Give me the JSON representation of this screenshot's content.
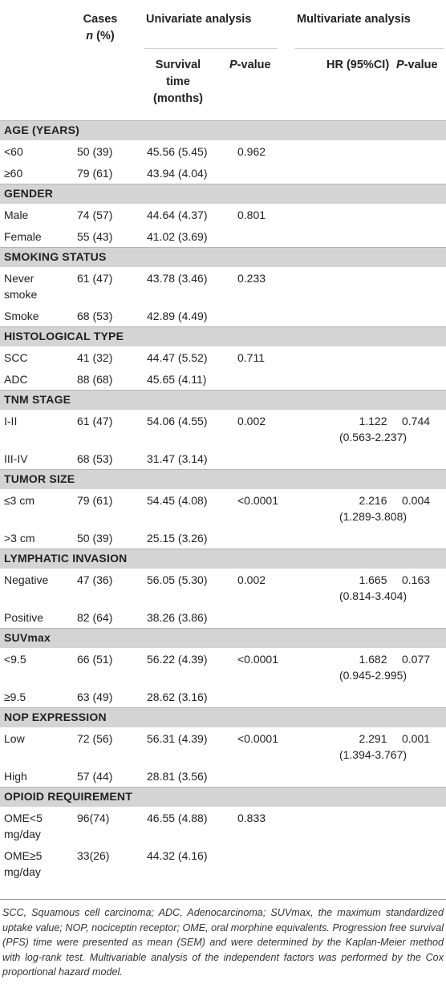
{
  "header": {
    "cases": "Cases",
    "cases_n": "n",
    "cases_pct": "(%)",
    "univariate": "Univariate analysis",
    "multivariate": "Multivariate analysis",
    "survival_line1": "Survival",
    "survival_line2": "time",
    "survival_line3": "(months)",
    "p_letter": "P",
    "p_suffix": "-value",
    "hr": "HR (95%CI)"
  },
  "sections": [
    {
      "title": "AGE (YEARS)",
      "rows": [
        {
          "factor": [
            "<60"
          ],
          "cases": "50 (39)",
          "survival": "45.56 (5.45)",
          "p_uni": "0.962",
          "hr": [],
          "p_multi": ""
        },
        {
          "factor": [
            "≥60"
          ],
          "cases": "79 (61)",
          "survival": "43.94 (4.04)",
          "p_uni": "",
          "hr": [],
          "p_multi": ""
        }
      ]
    },
    {
      "title": "GENDER",
      "rows": [
        {
          "factor": [
            "Male"
          ],
          "cases": "74 (57)",
          "survival": "44.64 (4.37)",
          "p_uni": "0.801",
          "hr": [],
          "p_multi": ""
        },
        {
          "factor": [
            "Female"
          ],
          "cases": "55 (43)",
          "survival": "41.02 (3.69)",
          "p_uni": "",
          "hr": [],
          "p_multi": ""
        }
      ]
    },
    {
      "title": "SMOKING STATUS",
      "rows": [
        {
          "factor": [
            "Never",
            "smoke"
          ],
          "cases": "61 (47)",
          "survival": "43.78 (3.46)",
          "p_uni": "0.233",
          "hr": [],
          "p_multi": ""
        },
        {
          "factor": [
            "Smoke"
          ],
          "cases": "68 (53)",
          "survival": "42.89 (4.49)",
          "p_uni": "",
          "hr": [],
          "p_multi": ""
        }
      ]
    },
    {
      "title": "HISTOLOGICAL TYPE",
      "rows": [
        {
          "factor": [
            "SCC"
          ],
          "cases": "41 (32)",
          "survival": "44.47 (5.52)",
          "p_uni": "0.711",
          "hr": [],
          "p_multi": ""
        },
        {
          "factor": [
            "ADC"
          ],
          "cases": "88 (68)",
          "survival": "45.65 (4.11)",
          "p_uni": "",
          "hr": [],
          "p_multi": ""
        }
      ]
    },
    {
      "title": "TNM STAGE",
      "rows": [
        {
          "factor": [
            "I-II"
          ],
          "cases": "61 (47)",
          "survival": "54.06 (4.55)",
          "p_uni": "0.002",
          "hr": [
            "1.122",
            "(0.563-2.237)"
          ],
          "p_multi": "0.744"
        },
        {
          "factor": [
            "III-IV"
          ],
          "cases": "68 (53)",
          "survival": "31.47 (3.14)",
          "p_uni": "",
          "hr": [],
          "p_multi": ""
        }
      ]
    },
    {
      "title": "TUMOR SIZE",
      "rows": [
        {
          "factor": [
            "≤3 cm"
          ],
          "cases": "79 (61)",
          "survival": "54.45 (4.08)",
          "p_uni": "<0.0001",
          "hr": [
            "2.216",
            "(1.289-3.808)"
          ],
          "p_multi": "0.004"
        },
        {
          "factor": [
            ">3 cm"
          ],
          "cases": "50 (39)",
          "survival": "25.15 (3.26)",
          "p_uni": "",
          "hr": [],
          "p_multi": ""
        }
      ]
    },
    {
      "title": "LYMPHATIC INVASION",
      "rows": [
        {
          "factor": [
            "Negative"
          ],
          "cases": "47 (36)",
          "survival": "56.05 (5.30)",
          "p_uni": "0.002",
          "hr": [
            "1.665",
            "(0.814-3.404)"
          ],
          "p_multi": "0.163"
        },
        {
          "factor": [
            "Positive"
          ],
          "cases": "82 (64)",
          "survival": "38.26 (3.86)",
          "p_uni": "",
          "hr": [],
          "p_multi": ""
        }
      ]
    },
    {
      "title": "SUVmax",
      "rows": [
        {
          "factor": [
            "<9.5"
          ],
          "cases": "66 (51)",
          "survival": "56.22 (4.39)",
          "p_uni": "<0.0001",
          "hr": [
            "1.682",
            "(0.945-2.995)"
          ],
          "p_multi": "0.077"
        },
        {
          "factor": [
            "≥9.5"
          ],
          "cases": "63 (49)",
          "survival": "28.62 (3.16)",
          "p_uni": "",
          "hr": [],
          "p_multi": ""
        }
      ]
    },
    {
      "title": "NOP EXPRESSION",
      "rows": [
        {
          "factor": [
            "Low"
          ],
          "cases": "72 (56)",
          "survival": "56.31 (4.39)",
          "p_uni": "<0.0001",
          "hr": [
            "2.291",
            "(1.394-3.767)"
          ],
          "p_multi": "0.001"
        },
        {
          "factor": [
            "High"
          ],
          "cases": "57 (44)",
          "survival": "28.81 (3.56)",
          "p_uni": "",
          "hr": [],
          "p_multi": ""
        }
      ]
    },
    {
      "title": "OPIOID REQUIREMENT",
      "rows": [
        {
          "factor": [
            "OME<5",
            "mg/day"
          ],
          "cases": "96(74)",
          "survival": "46.55 (4.88)",
          "p_uni": "0.833",
          "hr": [],
          "p_multi": ""
        },
        {
          "factor": [
            "OME≥5",
            "mg/day"
          ],
          "cases": "33(26)",
          "survival": "44.32 (4.16)",
          "p_uni": "",
          "hr": [],
          "p_multi": ""
        }
      ]
    }
  ],
  "footnote": "SCC, Squamous cell carcinoma; ADC, Adenocarcinoma; SUVmax, the maximum standardized uptake value; NOP, nociceptin receptor; OME, oral morphine equivalents. Progression free survival (PFS) time were presented as mean (SEM) and were determined by the Kaplan-Meier method with log-rank test. Multivariable analysis of the independent factors was performed by the Cox proportional hazard model."
}
